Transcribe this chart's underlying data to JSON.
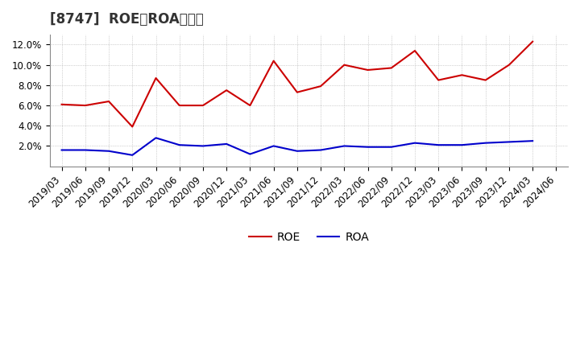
{
  "title": "[8747]  ROE、ROAの推移",
  "x_labels": [
    "2019/03",
    "2019/06",
    "2019/09",
    "2019/12",
    "2020/03",
    "2020/06",
    "2020/09",
    "2020/12",
    "2021/03",
    "2021/06",
    "2021/09",
    "2021/12",
    "2022/03",
    "2022/06",
    "2022/09",
    "2022/12",
    "2023/03",
    "2023/06",
    "2023/09",
    "2023/12",
    "2024/03",
    "2024/06"
  ],
  "roe": [
    6.1,
    6.0,
    6.4,
    3.9,
    8.7,
    6.0,
    6.0,
    7.5,
    6.0,
    10.4,
    7.3,
    7.9,
    10.0,
    9.5,
    9.7,
    11.4,
    8.5,
    9.0,
    8.5,
    10.0,
    12.3,
    null
  ],
  "roa": [
    1.6,
    1.6,
    1.5,
    1.1,
    2.8,
    2.1,
    2.0,
    2.2,
    1.2,
    2.0,
    1.5,
    1.6,
    2.0,
    1.9,
    1.9,
    2.3,
    2.1,
    2.1,
    2.3,
    2.4,
    2.5,
    null
  ],
  "roe_color": "#cc0000",
  "roa_color": "#0000cc",
  "bg_color": "#ffffff",
  "plot_bg_color": "#ffffff",
  "grid_color": "#aaaaaa",
  "ylim_min": 0.0,
  "ylim_max": 13.0,
  "yticks": [
    2.0,
    4.0,
    6.0,
    8.0,
    10.0,
    12.0
  ],
  "title_fontsize": 12,
  "legend_fontsize": 10,
  "tick_fontsize": 8.5
}
